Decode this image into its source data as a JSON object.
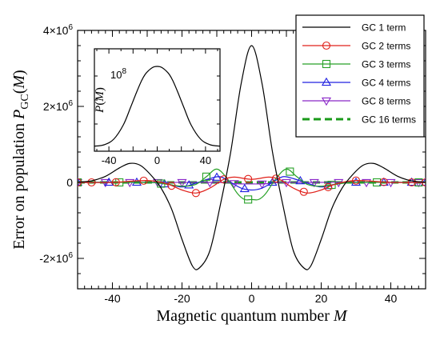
{
  "chart_data": [
    {
      "type": "line",
      "xlabel": "Magnetic quantum number M",
      "ylabel": "Error on population P_GC(M)",
      "xlim": [
        -50,
        50
      ],
      "ylim": [
        -2800000,
        4000000
      ],
      "x_ticks": [
        -40,
        -20,
        0,
        20,
        40
      ],
      "y_ticks": [
        {
          "value": 4000000,
          "label": "4×10",
          "exp": "6"
        },
        {
          "value": 2000000,
          "label": "2×10",
          "exp": "6"
        },
        {
          "value": 0,
          "label": "0",
          "exp": ""
        },
        {
          "value": -2000000,
          "label": "-2×10",
          "exp": "6"
        }
      ],
      "legend_position": "top-right",
      "series": [
        {
          "name": "GC 1 term",
          "color": "#000000",
          "marker": "none",
          "dash": "solid",
          "x": [
            -50,
            -46,
            -42,
            -38,
            -35,
            -32,
            -29,
            -26,
            -23,
            -20,
            -17,
            -15,
            -12,
            -9,
            -6,
            -3,
            0,
            3,
            6,
            9,
            12,
            15,
            17,
            20,
            23,
            26,
            29,
            32,
            35,
            38,
            42,
            46,
            50
          ],
          "y": [
            5000,
            40000,
            160000,
            380000,
            500000,
            450000,
            200000,
            -150000,
            -700000,
            -1500000,
            -2200000,
            -2250000,
            -1800000,
            -600000,
            800000,
            2600000,
            3600000,
            2600000,
            800000,
            -600000,
            -1800000,
            -2250000,
            -2200000,
            -1500000,
            -700000,
            -150000,
            200000,
            450000,
            500000,
            380000,
            160000,
            40000,
            5000
          ]
        },
        {
          "name": "GC 2 terms",
          "color": "#e0201a",
          "marker": "circle",
          "dash": "solid",
          "x": [
            -50,
            -40,
            -30,
            -24,
            -20,
            -16,
            -12,
            -8,
            -5,
            -2,
            0,
            2,
            5,
            8,
            12,
            16,
            20,
            24,
            30,
            40,
            50
          ],
          "y": [
            0,
            0,
            50000,
            -50000,
            -200000,
            -280000,
            -150000,
            80000,
            140000,
            100000,
            80000,
            100000,
            140000,
            80000,
            -150000,
            -280000,
            -200000,
            -50000,
            50000,
            0,
            0
          ],
          "markers": [
            -50,
            -46,
            -39,
            -31,
            -23,
            -16,
            -8,
            -1,
            7,
            15,
            22,
            30,
            38,
            46,
            50
          ]
        },
        {
          "name": "GC 3 terms",
          "color": "#27a127",
          "marker": "square",
          "dash": "solid",
          "x": [
            -50,
            -30,
            -25,
            -20,
            -16,
            -13,
            -10,
            -7,
            -4,
            -2,
            0,
            2,
            4,
            7,
            10,
            13,
            16,
            20,
            25,
            30,
            50
          ],
          "y": [
            0,
            0,
            -40000,
            -100000,
            -50000,
            150000,
            350000,
            100000,
            -300000,
            -450000,
            -450000,
            -450000,
            -300000,
            100000,
            350000,
            150000,
            -50000,
            -100000,
            -40000,
            0,
            0
          ],
          "markers": [
            -50,
            -38,
            -26,
            -13,
            -1,
            11,
            23,
            36,
            48
          ]
        },
        {
          "name": "GC 4 terms",
          "color": "#2020e0",
          "marker": "triangle-up",
          "dash": "solid",
          "x": [
            -50,
            -30,
            -24,
            -20,
            -16,
            -12,
            -9,
            -6,
            -3,
            0,
            3,
            6,
            9,
            12,
            16,
            20,
            24,
            30,
            50
          ],
          "y": [
            0,
            0,
            -50000,
            -120000,
            -20000,
            100000,
            150000,
            0,
            -150000,
            -200000,
            -150000,
            0,
            150000,
            100000,
            -20000,
            -120000,
            -50000,
            0,
            0
          ],
          "markers": [
            -50,
            -41,
            -33,
            -25,
            -18,
            -10,
            -2,
            6,
            14,
            22,
            30,
            38,
            46,
            50
          ]
        },
        {
          "name": "GC 8 terms",
          "color": "#8a28c8",
          "marker": "triangle-down",
          "dash": "solid",
          "x": [
            -50,
            -10,
            -6,
            -3,
            0,
            3,
            6,
            10,
            50
          ],
          "y": [
            0,
            0,
            -25000,
            -40000,
            -40000,
            -40000,
            -25000,
            0,
            0
          ],
          "markers": [
            -50,
            -42,
            -35,
            -27,
            -20,
            -12,
            -5,
            3,
            10,
            18,
            25,
            33,
            40,
            48
          ]
        },
        {
          "name": "GC 16 terms",
          "color": "#1a9a1a",
          "marker": "none",
          "dash": "dashed",
          "x": [
            -50,
            0,
            50
          ],
          "y": [
            0,
            0,
            0
          ]
        }
      ]
    },
    {
      "type": "line",
      "xlabel": "",
      "ylabel": "P(M)",
      "xlim": [
        -52,
        52
      ],
      "x_ticks": [
        -40,
        0,
        40
      ],
      "y_annotation": {
        "label": "10",
        "exp": "8"
      },
      "series": [
        {
          "color": "#000000",
          "x": [
            -52,
            -44,
            -36,
            -28,
            -22,
            -17,
            -13,
            -10,
            -7,
            -4,
            -2,
            0,
            2,
            4,
            7,
            10,
            13,
            17,
            22,
            28,
            36,
            44,
            52
          ],
          "y": [
            0.003,
            0.02,
            0.09,
            0.27,
            0.49,
            0.68,
            0.82,
            0.9,
            0.95,
            0.985,
            0.997,
            1,
            0.997,
            0.985,
            0.95,
            0.9,
            0.82,
            0.68,
            0.49,
            0.27,
            0.09,
            0.02,
            0.003
          ]
        }
      ]
    }
  ]
}
